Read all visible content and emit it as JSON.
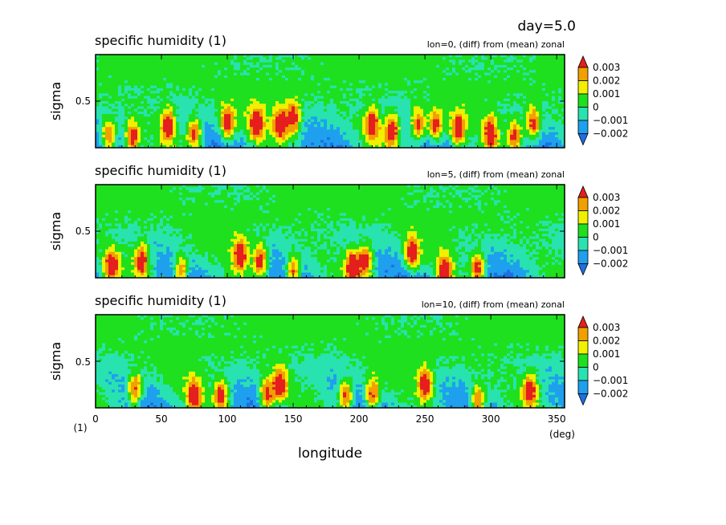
{
  "header": {
    "day_label": "day=5.0"
  },
  "xaxis": {
    "label": "longitude",
    "unit": "(deg)",
    "ticks": [
      0,
      50,
      100,
      150,
      200,
      250,
      300,
      350
    ],
    "range": [
      0,
      356
    ],
    "origin_unit_label": "(1)"
  },
  "yaxis": {
    "label": "sigma",
    "tick": "0.5",
    "range": [
      0.1,
      0.9
    ]
  },
  "panels": [
    {
      "title": "specific humidity (1)",
      "subtitle": "lon=0, (diff) from (mean) zonal"
    },
    {
      "title": "specific humidity (1)",
      "subtitle": "lon=5, (diff) from (mean) zonal"
    },
    {
      "title": "specific humidity (1)",
      "subtitle": "lon=10, (diff) from (mean) zonal"
    }
  ],
  "colorbar": {
    "labels": [
      "0.003",
      "0.002",
      "0.001",
      "0",
      "−0.001",
      "−0.002"
    ],
    "colors": [
      "#1e6fe0",
      "#1ea0ee",
      "#28e2b0",
      "#1ee01e",
      "#f0f000",
      "#f0a000",
      "#e51e1e"
    ],
    "levels": [
      -0.002,
      -0.001,
      0,
      0.001,
      0.002,
      0.003
    ]
  },
  "chart_data": {
    "type": "heatmap",
    "title": "specific humidity (1)",
    "xlabel": "longitude",
    "ylabel": "sigma",
    "x_unit": "deg",
    "xlim": [
      0,
      356
    ],
    "ylim": [
      0.1,
      0.9
    ],
    "contour_levels": [
      -0.002,
      -0.001,
      0,
      0.001,
      0.002,
      0.003
    ],
    "panels": [
      {
        "subtitle": "lon=0, (diff) from (mean) zonal",
        "high_anomaly_centers": [
          {
            "x": 10,
            "sigma": 0.2
          },
          {
            "x": 28,
            "sigma": 0.18
          },
          {
            "x": 55,
            "sigma": 0.3
          },
          {
            "x": 75,
            "sigma": 0.22
          },
          {
            "x": 100,
            "sigma": 0.3
          },
          {
            "x": 122,
            "sigma": 0.3
          },
          {
            "x": 140,
            "sigma": 0.3
          },
          {
            "x": 150,
            "sigma": 0.35
          },
          {
            "x": 210,
            "sigma": 0.3
          },
          {
            "x": 225,
            "sigma": 0.25
          },
          {
            "x": 245,
            "sigma": 0.3
          },
          {
            "x": 258,
            "sigma": 0.28
          },
          {
            "x": 275,
            "sigma": 0.25
          },
          {
            "x": 300,
            "sigma": 0.22
          },
          {
            "x": 318,
            "sigma": 0.2
          },
          {
            "x": 332,
            "sigma": 0.3
          }
        ]
      },
      {
        "subtitle": "lon=5, (diff) from (mean) zonal",
        "high_anomaly_centers": [
          {
            "x": 12,
            "sigma": 0.2
          },
          {
            "x": 35,
            "sigma": 0.25
          },
          {
            "x": 65,
            "sigma": 0.15
          },
          {
            "x": 110,
            "sigma": 0.3
          },
          {
            "x": 125,
            "sigma": 0.25
          },
          {
            "x": 150,
            "sigma": 0.15
          },
          {
            "x": 195,
            "sigma": 0.2
          },
          {
            "x": 205,
            "sigma": 0.25
          },
          {
            "x": 240,
            "sigma": 0.3
          },
          {
            "x": 265,
            "sigma": 0.15
          },
          {
            "x": 290,
            "sigma": 0.18
          }
        ]
      },
      {
        "subtitle": "lon=10, (diff) from (mean) zonal",
        "high_anomaly_centers": [
          {
            "x": 30,
            "sigma": 0.25
          },
          {
            "x": 75,
            "sigma": 0.2
          },
          {
            "x": 95,
            "sigma": 0.2
          },
          {
            "x": 130,
            "sigma": 0.2
          },
          {
            "x": 140,
            "sigma": 0.3
          },
          {
            "x": 190,
            "sigma": 0.2
          },
          {
            "x": 210,
            "sigma": 0.2
          },
          {
            "x": 250,
            "sigma": 0.3
          },
          {
            "x": 290,
            "sigma": 0.15
          },
          {
            "x": 330,
            "sigma": 0.25
          }
        ]
      }
    ]
  }
}
